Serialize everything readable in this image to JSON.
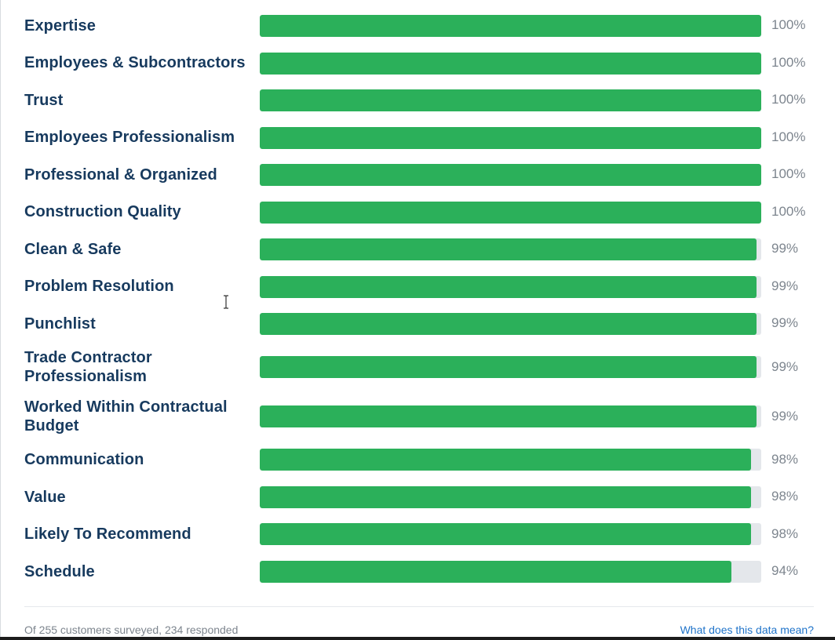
{
  "ratings": [
    {
      "label": "Expertise",
      "percent_text": "100%",
      "value": 100
    },
    {
      "label": "Employees & Subcontractors",
      "percent_text": "100%",
      "value": 100
    },
    {
      "label": "Trust",
      "percent_text": "100%",
      "value": 100
    },
    {
      "label": "Employees Professionalism",
      "percent_text": "100%",
      "value": 100
    },
    {
      "label": "Professional & Organized",
      "percent_text": "100%",
      "value": 100
    },
    {
      "label": "Construction Quality",
      "percent_text": "100%",
      "value": 100
    },
    {
      "label": "Clean & Safe",
      "percent_text": "99%",
      "value": 99
    },
    {
      "label": "Problem Resolution",
      "percent_text": "99%",
      "value": 99
    },
    {
      "label": "Punchlist",
      "percent_text": "99%",
      "value": 99
    },
    {
      "label": "Trade Contractor Professionalism",
      "percent_text": "99%",
      "value": 99
    },
    {
      "label": "Worked Within Contractual Budget",
      "percent_text": "99%",
      "value": 99
    },
    {
      "label": "Communication",
      "percent_text": "98%",
      "value": 98
    },
    {
      "label": "Value",
      "percent_text": "98%",
      "value": 98
    },
    {
      "label": "Likely To Recommend",
      "percent_text": "98%",
      "value": 98
    },
    {
      "label": "Schedule",
      "percent_text": "94%",
      "value": 94
    }
  ],
  "footer": {
    "note": "Of 255 customers surveyed, 234 responded",
    "link_label": "What does this data mean?"
  },
  "colors": {
    "bar_fill": "#2bb05a",
    "bar_track": "#e4e7eb",
    "label_text": "#173a5e",
    "percent_text": "#7d858e",
    "link": "#1f73c9"
  },
  "cursor": {
    "icon": "text-cursor-icon"
  }
}
